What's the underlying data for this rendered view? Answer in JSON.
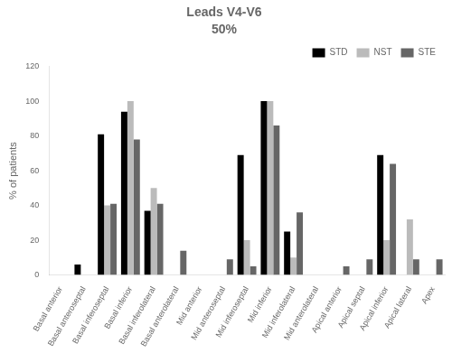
{
  "chart_data": {
    "type": "bar",
    "title": "Leads V4-V6",
    "subtitle": "50%",
    "y_label": "% of patients",
    "categories": [
      "Basal anterior",
      "Basal anteroseptal",
      "Basal inferoseptal",
      "Basal inferior",
      "Basal inferolateral",
      "Basal anterolateral",
      "Mid anterior",
      "Mid anteroseptal",
      "Mid inferoseptal",
      "Mid inferior",
      "Mid inferolateral",
      "Mid anterolateral",
      "Apical anterior",
      "Apical septal",
      "Apical inferior",
      "Apical lateral",
      "Apex"
    ],
    "series": [
      {
        "name": "STD",
        "color": "#000000",
        "values": [
          0,
          6,
          81,
          94,
          37,
          0,
          0,
          0,
          69,
          100,
          25,
          0,
          0,
          0,
          69,
          0,
          0
        ]
      },
      {
        "name": "NST",
        "color": "#bbbbbb",
        "values": [
          0,
          0,
          40,
          100,
          50,
          0,
          0,
          0,
          20,
          100,
          10,
          0,
          0,
          0,
          20,
          32,
          0
        ]
      },
      {
        "name": "STE",
        "color": "#666666",
        "values": [
          0,
          0,
          41,
          78,
          41,
          14,
          0,
          9,
          5,
          86,
          36,
          0,
          5,
          9,
          64,
          9,
          9
        ]
      }
    ],
    "ylim": [
      0,
      120
    ],
    "yticks": [
      0,
      20,
      40,
      60,
      80,
      100,
      120
    ],
    "grid": false,
    "legend": "upper right"
  }
}
